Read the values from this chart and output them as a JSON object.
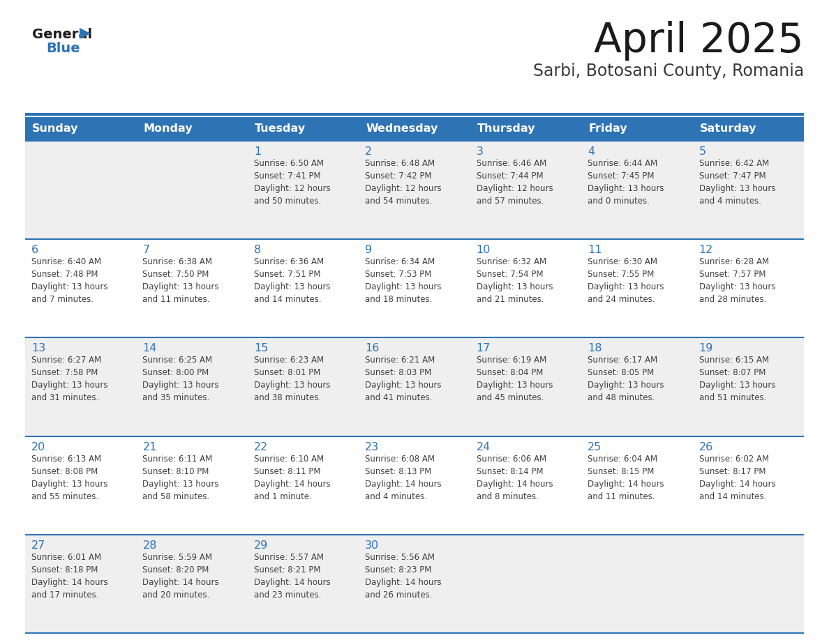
{
  "title": "April 2025",
  "subtitle": "Sarbi, Botosani County, Romania",
  "header_bg": "#2E74B5",
  "header_text_color": "#FFFFFF",
  "day_names": [
    "Sunday",
    "Monday",
    "Tuesday",
    "Wednesday",
    "Thursday",
    "Friday",
    "Saturday"
  ],
  "row_bg_odd": "#EFEFEF",
  "row_bg_even": "#FFFFFF",
  "border_color": "#2E74B5",
  "date_color": "#2E74B5",
  "text_color": "#404040",
  "weeks": [
    [
      {
        "day": "",
        "info": ""
      },
      {
        "day": "",
        "info": ""
      },
      {
        "day": "1",
        "info": "Sunrise: 6:50 AM\nSunset: 7:41 PM\nDaylight: 12 hours\nand 50 minutes."
      },
      {
        "day": "2",
        "info": "Sunrise: 6:48 AM\nSunset: 7:42 PM\nDaylight: 12 hours\nand 54 minutes."
      },
      {
        "day": "3",
        "info": "Sunrise: 6:46 AM\nSunset: 7:44 PM\nDaylight: 12 hours\nand 57 minutes."
      },
      {
        "day": "4",
        "info": "Sunrise: 6:44 AM\nSunset: 7:45 PM\nDaylight: 13 hours\nand 0 minutes."
      },
      {
        "day": "5",
        "info": "Sunrise: 6:42 AM\nSunset: 7:47 PM\nDaylight: 13 hours\nand 4 minutes."
      }
    ],
    [
      {
        "day": "6",
        "info": "Sunrise: 6:40 AM\nSunset: 7:48 PM\nDaylight: 13 hours\nand 7 minutes."
      },
      {
        "day": "7",
        "info": "Sunrise: 6:38 AM\nSunset: 7:50 PM\nDaylight: 13 hours\nand 11 minutes."
      },
      {
        "day": "8",
        "info": "Sunrise: 6:36 AM\nSunset: 7:51 PM\nDaylight: 13 hours\nand 14 minutes."
      },
      {
        "day": "9",
        "info": "Sunrise: 6:34 AM\nSunset: 7:53 PM\nDaylight: 13 hours\nand 18 minutes."
      },
      {
        "day": "10",
        "info": "Sunrise: 6:32 AM\nSunset: 7:54 PM\nDaylight: 13 hours\nand 21 minutes."
      },
      {
        "day": "11",
        "info": "Sunrise: 6:30 AM\nSunset: 7:55 PM\nDaylight: 13 hours\nand 24 minutes."
      },
      {
        "day": "12",
        "info": "Sunrise: 6:28 AM\nSunset: 7:57 PM\nDaylight: 13 hours\nand 28 minutes."
      }
    ],
    [
      {
        "day": "13",
        "info": "Sunrise: 6:27 AM\nSunset: 7:58 PM\nDaylight: 13 hours\nand 31 minutes."
      },
      {
        "day": "14",
        "info": "Sunrise: 6:25 AM\nSunset: 8:00 PM\nDaylight: 13 hours\nand 35 minutes."
      },
      {
        "day": "15",
        "info": "Sunrise: 6:23 AM\nSunset: 8:01 PM\nDaylight: 13 hours\nand 38 minutes."
      },
      {
        "day": "16",
        "info": "Sunrise: 6:21 AM\nSunset: 8:03 PM\nDaylight: 13 hours\nand 41 minutes."
      },
      {
        "day": "17",
        "info": "Sunrise: 6:19 AM\nSunset: 8:04 PM\nDaylight: 13 hours\nand 45 minutes."
      },
      {
        "day": "18",
        "info": "Sunrise: 6:17 AM\nSunset: 8:05 PM\nDaylight: 13 hours\nand 48 minutes."
      },
      {
        "day": "19",
        "info": "Sunrise: 6:15 AM\nSunset: 8:07 PM\nDaylight: 13 hours\nand 51 minutes."
      }
    ],
    [
      {
        "day": "20",
        "info": "Sunrise: 6:13 AM\nSunset: 8:08 PM\nDaylight: 13 hours\nand 55 minutes."
      },
      {
        "day": "21",
        "info": "Sunrise: 6:11 AM\nSunset: 8:10 PM\nDaylight: 13 hours\nand 58 minutes."
      },
      {
        "day": "22",
        "info": "Sunrise: 6:10 AM\nSunset: 8:11 PM\nDaylight: 14 hours\nand 1 minute."
      },
      {
        "day": "23",
        "info": "Sunrise: 6:08 AM\nSunset: 8:13 PM\nDaylight: 14 hours\nand 4 minutes."
      },
      {
        "day": "24",
        "info": "Sunrise: 6:06 AM\nSunset: 8:14 PM\nDaylight: 14 hours\nand 8 minutes."
      },
      {
        "day": "25",
        "info": "Sunrise: 6:04 AM\nSunset: 8:15 PM\nDaylight: 14 hours\nand 11 minutes."
      },
      {
        "day": "26",
        "info": "Sunrise: 6:02 AM\nSunset: 8:17 PM\nDaylight: 14 hours\nand 14 minutes."
      }
    ],
    [
      {
        "day": "27",
        "info": "Sunrise: 6:01 AM\nSunset: 8:18 PM\nDaylight: 14 hours\nand 17 minutes."
      },
      {
        "day": "28",
        "info": "Sunrise: 5:59 AM\nSunset: 8:20 PM\nDaylight: 14 hours\nand 20 minutes."
      },
      {
        "day": "29",
        "info": "Sunrise: 5:57 AM\nSunset: 8:21 PM\nDaylight: 14 hours\nand 23 minutes."
      },
      {
        "day": "30",
        "info": "Sunrise: 5:56 AM\nSunset: 8:23 PM\nDaylight: 14 hours\nand 26 minutes."
      },
      {
        "day": "",
        "info": ""
      },
      {
        "day": "",
        "info": ""
      },
      {
        "day": "",
        "info": ""
      }
    ]
  ],
  "logo_general_color": "#1a1a1a",
  "logo_blue_color": "#2E74B5",
  "logo_triangle_color": "#2E74B5"
}
